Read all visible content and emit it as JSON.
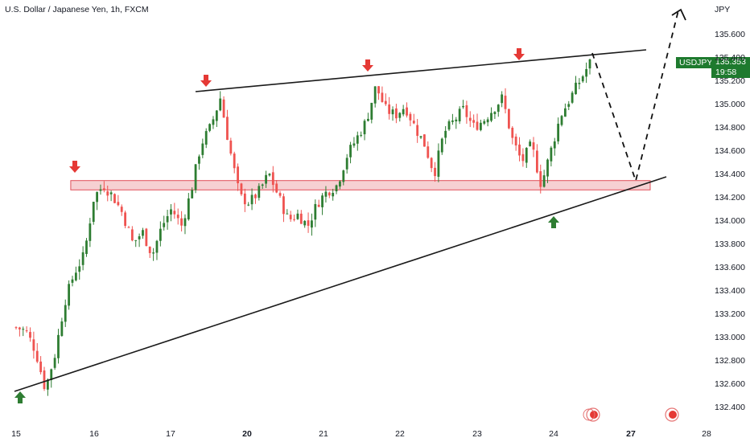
{
  "header": {
    "title": "U.S. Dollar / Japanese Yen, 1h, FXCM"
  },
  "price_axis": {
    "unit": "JPY",
    "ticks": [
      "135.600",
      "135.400",
      "135.200",
      "135.000",
      "134.800",
      "134.600",
      "134.400",
      "134.200",
      "134.000",
      "133.800",
      "133.600",
      "133.400",
      "133.200",
      "133.000",
      "132.800",
      "132.600",
      "132.400"
    ]
  },
  "time_axis": {
    "ticks": [
      "15",
      "16",
      "17",
      "20",
      "21",
      "22",
      "23",
      "24",
      "27",
      "28"
    ]
  },
  "last_price": {
    "symbol": "USDJPY",
    "price": "135.353",
    "countdown": "19:58"
  },
  "colors": {
    "up": "#26a69a",
    "down": "#ef5350",
    "bull_line": "#2e7d32",
    "sell_arrow": "#e53935",
    "buy_arrow": "#2e7d32",
    "zone_fill": "#f3c0c3",
    "zone_border": "#e0505a",
    "trendline": "#000000",
    "label_bg": "#1e7a2e"
  },
  "chart_data": {
    "type": "candlestick",
    "symbol": "USDJPY",
    "interval": "1h",
    "y_range": [
      132.35,
      135.7
    ],
    "x_range": [
      "15",
      "28"
    ],
    "price_path": [
      {
        "x": "15.00",
        "y": 133.08
      },
      {
        "x": "15.08",
        "y": 133.05
      },
      {
        "x": "15.15",
        "y": 132.88
      },
      {
        "x": "15.20",
        "y": 132.55
      },
      {
        "x": "15.28",
        "y": 132.85
      },
      {
        "x": "15.45",
        "y": 133.3
      },
      {
        "x": "15.60",
        "y": 133.55
      },
      {
        "x": "15.70",
        "y": 133.7
      },
      {
        "x": "15.80",
        "y": 134.2
      },
      {
        "x": "15.95",
        "y": 134.3
      },
      {
        "x": "16.05",
        "y": 134.2
      },
      {
        "x": "16.15",
        "y": 134.05
      },
      {
        "x": "16.20",
        "y": 133.8
      },
      {
        "x": "16.40",
        "y": 133.9
      },
      {
        "x": "16.55",
        "y": 133.7
      },
      {
        "x": "16.70",
        "y": 133.95
      },
      {
        "x": "16.85",
        "y": 134.1
      },
      {
        "x": "16.95",
        "y": 133.95
      },
      {
        "x": "17.05",
        "y": 134.25
      },
      {
        "x": "17.15",
        "y": 134.65
      },
      {
        "x": "17.35",
        "y": 134.8
      },
      {
        "x": "17.45",
        "y": 135.05
      },
      {
        "x": "17.60",
        "y": 134.6
      },
      {
        "x": "17.70",
        "y": 134.2
      },
      {
        "x": "17.85",
        "y": 134.15
      },
      {
        "x": "18.00",
        "y": 134.25
      },
      {
        "x": "18.10",
        "y": 134.4
      },
      {
        "x": "18.20",
        "y": 134.2
      },
      {
        "x": "18.35",
        "y": 134.0
      },
      {
        "x": "18.50",
        "y": 134.05
      },
      {
        "x": "18.60",
        "y": 133.95
      },
      {
        "x": "18.75",
        "y": 134.15
      },
      {
        "x": "18.90",
        "y": 134.25
      },
      {
        "x": "19.05",
        "y": 134.3
      },
      {
        "x": "19.15",
        "y": 134.55
      },
      {
        "x": "19.30",
        "y": 134.7
      },
      {
        "x": "19.45",
        "y": 134.85
      },
      {
        "x": "19.55",
        "y": 135.15
      },
      {
        "x": "19.65",
        "y": 134.95
      },
      {
        "x": "19.80",
        "y": 134.9
      },
      {
        "x": "19.95",
        "y": 134.98
      },
      {
        "x": "20.10",
        "y": 134.8
      },
      {
        "x": "20.25",
        "y": 134.65
      },
      {
        "x": "20.35",
        "y": 134.4
      },
      {
        "x": "20.50",
        "y": 134.75
      },
      {
        "x": "20.65",
        "y": 134.85
      },
      {
        "x": "20.80",
        "y": 134.95
      },
      {
        "x": "20.95",
        "y": 134.8
      },
      {
        "x": "21.10",
        "y": 134.85
      },
      {
        "x": "21.25",
        "y": 134.95
      },
      {
        "x": "21.40",
        "y": 135.05
      },
      {
        "x": "21.50",
        "y": 134.7
      },
      {
        "x": "21.60",
        "y": 134.5
      },
      {
        "x": "21.70",
        "y": 134.65
      },
      {
        "x": "21.78",
        "y": 134.3
      },
      {
        "x": "21.85",
        "y": 134.6
      },
      {
        "x": "21.92",
        "y": 134.9
      },
      {
        "x": "22.00",
        "y": 135.05
      },
      {
        "x": "22.08",
        "y": 135.2
      },
      {
        "x": "22.15",
        "y": 135.35
      }
    ],
    "horizontal_zone": {
      "from": 134.26,
      "to": 134.34,
      "x_from": "15.7",
      "x_to": "24.5"
    },
    "trendlines": [
      {
        "name": "upper",
        "points": [
          [
            "17.3",
            135.12
          ],
          [
            "23.2",
            135.47
          ]
        ]
      },
      {
        "name": "lower",
        "points": [
          [
            "15.2",
            132.52
          ],
          [
            "24.5",
            134.37
          ]
        ]
      }
    ],
    "projection": [
      [
        "22.15",
        135.4
      ],
      [
        "23.0",
        134.32
      ],
      [
        "23.6",
        135.7
      ]
    ],
    "sell_arrows": [
      [
        "15.8",
        134.43
      ],
      [
        "17.4",
        135.22
      ],
      [
        "20.7",
        135.36
      ],
      [
        "21.9",
        135.46
      ]
    ],
    "buy_arrows": [
      [
        "15.15",
        132.5
      ],
      [
        "22.05",
        134.0
      ]
    ]
  }
}
